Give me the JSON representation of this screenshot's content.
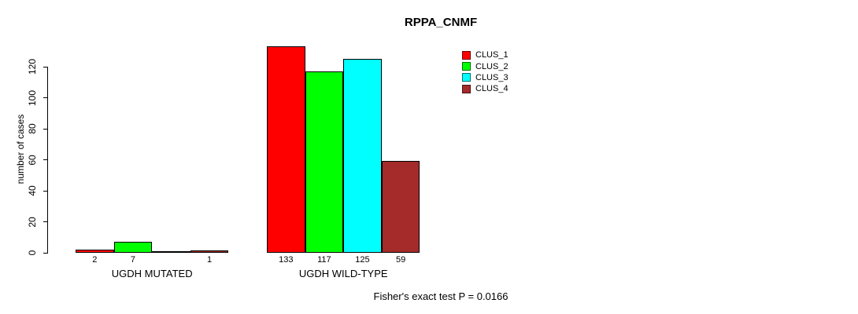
{
  "chart_data": {
    "type": "bar",
    "title": "RPPA_CNMF",
    "ylabel": "number of cases",
    "xlabel": "",
    "yticks": [
      0,
      20,
      40,
      60,
      80,
      100,
      120
    ],
    "ylim": [
      0,
      135
    ],
    "grid": false,
    "legend_position": "top-right-inside",
    "series": [
      {
        "name": "CLUS_1",
        "color": "#FF0000"
      },
      {
        "name": "CLUS_2",
        "color": "#00FF00"
      },
      {
        "name": "CLUS_3",
        "color": "#00FFFF"
      },
      {
        "name": "CLUS_4",
        "color": "#A52A2A"
      }
    ],
    "groups": [
      {
        "label": "UGDH MUTATED",
        "values": [
          2,
          7,
          0,
          1
        ],
        "value_labels": [
          "2",
          "7",
          "",
          "1"
        ]
      },
      {
        "label": "UGDH WILD-TYPE",
        "values": [
          133,
          117,
          125,
          59
        ],
        "value_labels": [
          "133",
          "117",
          "125",
          "59"
        ]
      }
    ]
  },
  "footer": "Fisher's exact test P = 0.0166"
}
